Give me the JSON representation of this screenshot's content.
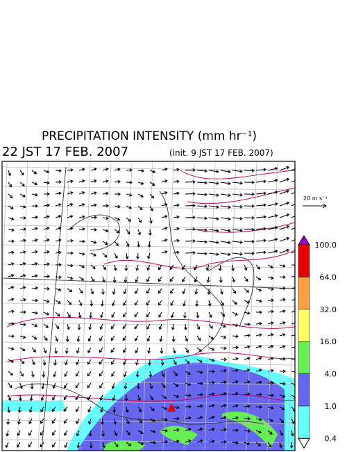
{
  "header": {
    "title": "PRECIPITATION INTENSITY (mm hr⁻¹)",
    "valid_time": "22 JST 17 FEB. 2007",
    "init_time": "(init. 9 JST 17 FEB. 2007)"
  },
  "wind_scale": {
    "label": "20 m s⁻¹"
  },
  "colorbar": {
    "labels": [
      "100.0",
      "64.0",
      "32.0",
      "16.0",
      "4.0",
      "1.0",
      "0.4"
    ],
    "colors": [
      "#e60000",
      "#ffa040",
      "#ffff66",
      "#66ee55",
      "#6666ee",
      "#66ffff"
    ],
    "over_color": "#9900cc",
    "under_color": "#ffffff"
  }
}
